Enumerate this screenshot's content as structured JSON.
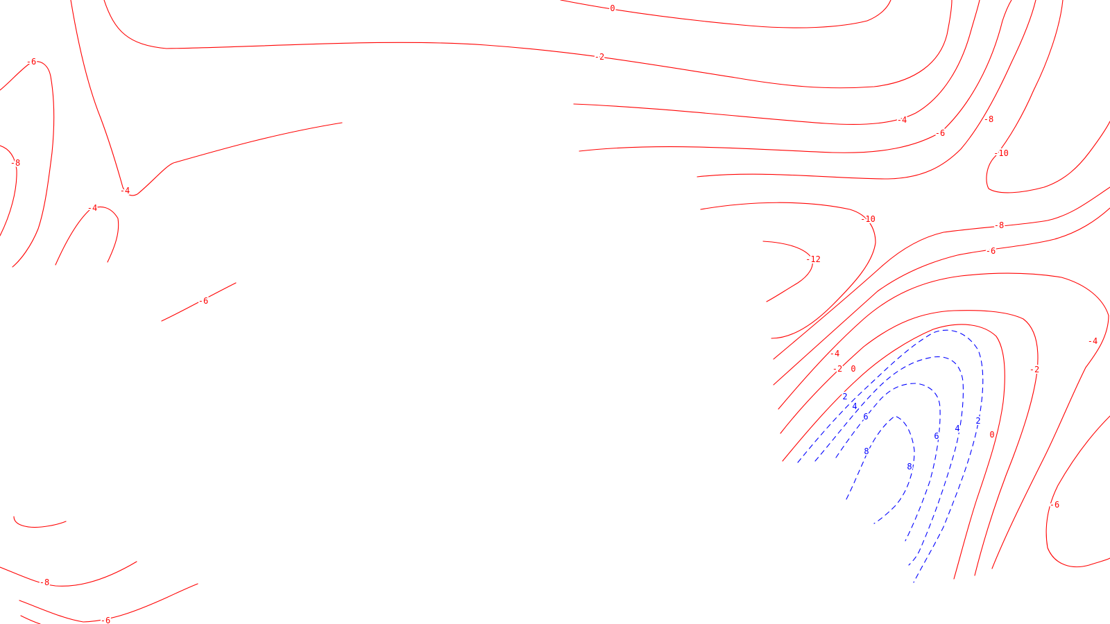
{
  "colors": {
    "background": "#ffffff",
    "negative_and_zero": "#ff0000",
    "positive": "#0000ff"
  },
  "line_styles": {
    "negative_and_zero": "solid",
    "positive": "dashed"
  },
  "contours": [
    {
      "id": "c01",
      "level": "0"
    },
    {
      "id": "c02",
      "level": "-2"
    },
    {
      "id": "c03",
      "level": "-6"
    },
    {
      "id": "c04",
      "level": "-8"
    },
    {
      "id": "c05",
      "level": "-4"
    },
    {
      "id": "c06",
      "level": "-4"
    },
    {
      "id": "c07",
      "level": "-6"
    },
    {
      "id": "c08",
      "level": "-4"
    },
    {
      "id": "c09",
      "level": "-6"
    },
    {
      "id": "c10",
      "level": "-8"
    },
    {
      "id": "c11",
      "level": "-10"
    },
    {
      "id": "c12",
      "level": "-10"
    },
    {
      "id": "c13",
      "level": "-12"
    },
    {
      "id": "c14",
      "level": "-8"
    },
    {
      "id": "c15",
      "level": "-6"
    },
    {
      "id": "c16",
      "level": "-4"
    },
    {
      "id": "c17",
      "level": "-2"
    },
    {
      "id": "c18",
      "level": "0"
    },
    {
      "id": "c19",
      "level": "2"
    },
    {
      "id": "c20",
      "level": "4"
    },
    {
      "id": "c21",
      "level": "6"
    },
    {
      "id": "c22",
      "level": "8"
    },
    {
      "id": "c23",
      "level": "-6"
    },
    {
      "id": "c24",
      "level": "-8"
    },
    {
      "id": "c25",
      "level": "-6"
    }
  ]
}
